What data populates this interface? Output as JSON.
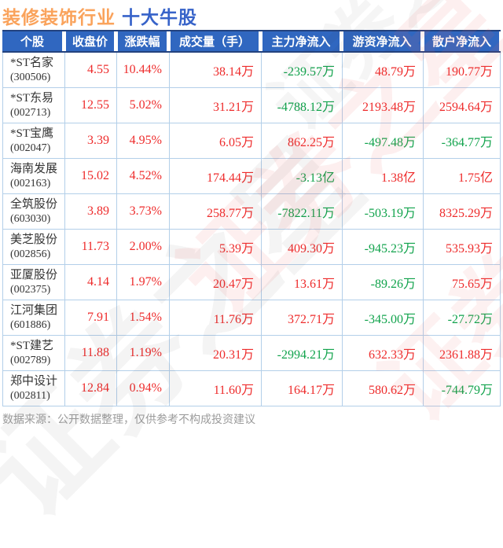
{
  "title": {
    "industry": "装修装饰行业",
    "suffix": "十大牛股"
  },
  "footer": {
    "note": "数据来源：公开数据整理，仅供参考不构成投资建议"
  },
  "watermark": {
    "text": "证券之星"
  },
  "colors": {
    "title_orange": "#faa35c",
    "title_blue": "#3763c9",
    "header_bg": "#3067c0",
    "header_border": "#23427e",
    "up_red": "#ee2c2c",
    "down_green": "#11a34c",
    "grid_border": "#b3cfe9",
    "note_gray": "#9c9c9c"
  },
  "chart_data": {
    "type": "table",
    "title": "装修装饰行业 十大牛股",
    "columns": [
      "个股",
      "收盘价",
      "涨跌幅",
      "成交量（手）",
      "主力净流入",
      "游资净流入",
      "散户净流入"
    ],
    "rows": [
      {
        "name": "*ST名家",
        "code": "(300506)",
        "close": "4.55",
        "change": "10.44%",
        "volume": "38.14万",
        "main": "-239.57万",
        "hot": "48.79万",
        "retail": "190.77万"
      },
      {
        "name": "*ST东易",
        "code": "(002713)",
        "close": "12.55",
        "change": "5.02%",
        "volume": "31.21万",
        "main": "-4788.12万",
        "hot": "2193.48万",
        "retail": "2594.64万"
      },
      {
        "name": "*ST宝鹰",
        "code": "(002047)",
        "close": "3.39",
        "change": "4.95%",
        "volume": "6.05万",
        "main": "862.25万",
        "hot": "-497.48万",
        "retail": "-364.77万"
      },
      {
        "name": "海南发展",
        "code": "(002163)",
        "close": "15.02",
        "change": "4.52%",
        "volume": "174.44万",
        "main": "-3.13亿",
        "hot": "1.38亿",
        "retail": "1.75亿"
      },
      {
        "name": "全筑股份",
        "code": "(603030)",
        "close": "3.89",
        "change": "3.73%",
        "volume": "258.77万",
        "main": "-7822.11万",
        "hot": "-503.19万",
        "retail": "8325.29万"
      },
      {
        "name": "美芝股份",
        "code": "(002856)",
        "close": "11.73",
        "change": "2.00%",
        "volume": "5.39万",
        "main": "409.30万",
        "hot": "-945.23万",
        "retail": "535.93万"
      },
      {
        "name": "亚厦股份",
        "code": "(002375)",
        "close": "4.14",
        "change": "1.97%",
        "volume": "20.47万",
        "main": "13.61万",
        "hot": "-89.26万",
        "retail": "75.65万"
      },
      {
        "name": "江河集团",
        "code": "(601886)",
        "close": "7.91",
        "change": "1.54%",
        "volume": "11.76万",
        "main": "372.71万",
        "hot": "-345.00万",
        "retail": "-27.72万"
      },
      {
        "name": "*ST建艺",
        "code": "(002789)",
        "close": "11.88",
        "change": "1.19%",
        "volume": "20.31万",
        "main": "-2994.21万",
        "hot": "632.33万",
        "retail": "2361.88万"
      },
      {
        "name": "郑中设计",
        "code": "(002811)",
        "close": "12.84",
        "change": "0.94%",
        "volume": "11.60万",
        "main": "164.17万",
        "hot": "580.62万",
        "retail": "-744.79万"
      }
    ]
  }
}
